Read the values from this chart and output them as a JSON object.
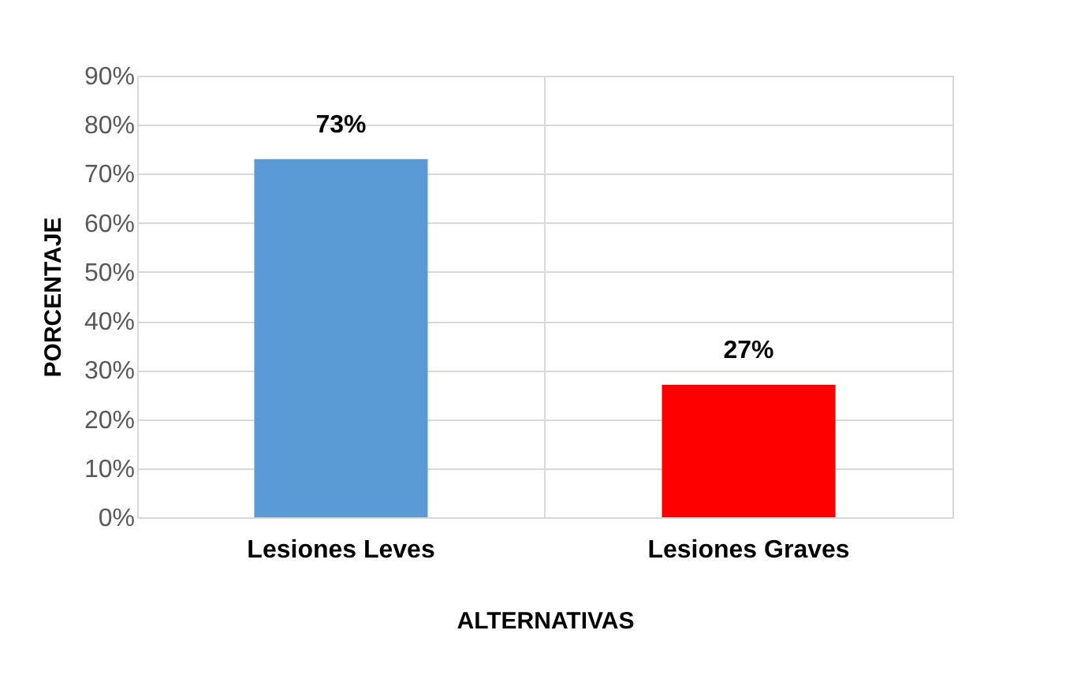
{
  "chart_data": {
    "type": "bar",
    "xlabel": "ALTERNATIVAS",
    "ylabel": "PORCENTAJE",
    "categories": [
      "Lesiones Leves",
      "Lesiones Graves"
    ],
    "values": [
      73,
      27
    ],
    "colors": [
      "#5b9bd5",
      "#ff0000"
    ],
    "value_labels": [
      "73%",
      "27%"
    ],
    "ylim": [
      0,
      90
    ],
    "yticks": [
      {
        "value": 0,
        "label": "0%"
      },
      {
        "value": 10,
        "label": "10%"
      },
      {
        "value": 20,
        "label": "20%"
      },
      {
        "value": 30,
        "label": "30%"
      },
      {
        "value": 40,
        "label": "40%"
      },
      {
        "value": 50,
        "label": "50%"
      },
      {
        "value": 60,
        "label": "60%"
      },
      {
        "value": 70,
        "label": "70%"
      },
      {
        "value": 80,
        "label": "80%"
      },
      {
        "value": 90,
        "label": "90%"
      }
    ],
    "grid": true,
    "legend": false
  }
}
